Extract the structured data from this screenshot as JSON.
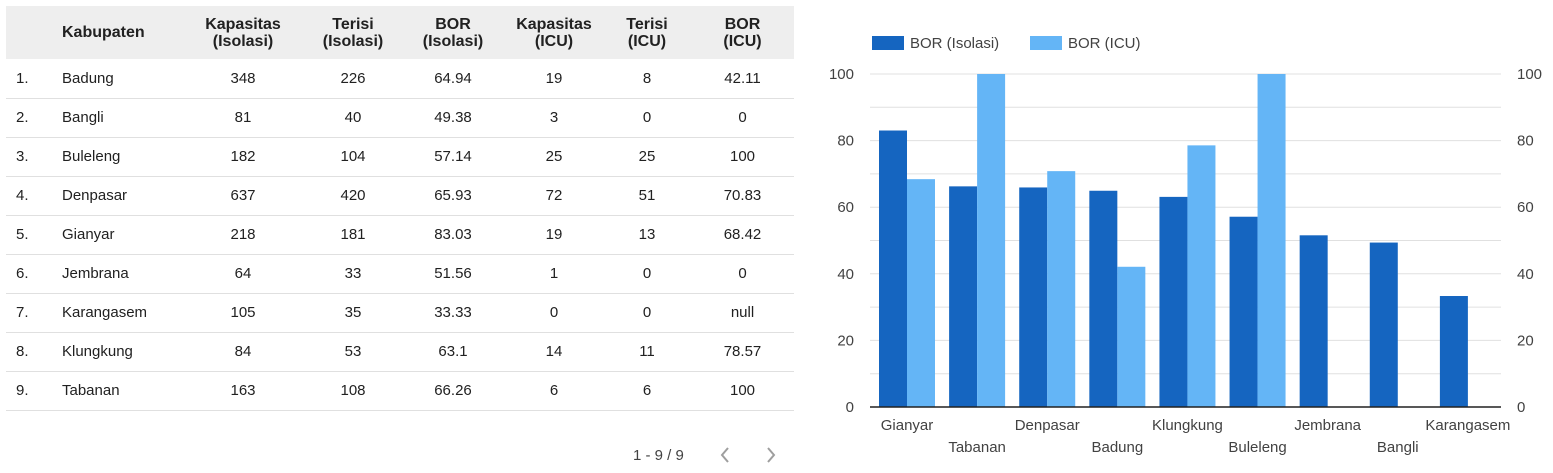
{
  "table": {
    "headers": [
      {
        "line1": "",
        "line2": ""
      },
      {
        "line1": "Kabupaten",
        "line2": ""
      },
      {
        "line1": "Kapasitas",
        "line2": "(Isolasi)"
      },
      {
        "line1": "Terisi",
        "line2": "(Isolasi)"
      },
      {
        "line1": "BOR",
        "line2": "(Isolasi)"
      },
      {
        "line1": "Kapasitas",
        "line2": "(ICU)"
      },
      {
        "line1": "Terisi",
        "line2": "(ICU)"
      },
      {
        "line1": "BOR",
        "line2": "(ICU)"
      }
    ],
    "rows": [
      {
        "no": "1.",
        "kabupaten": "Badung",
        "kap_iso": "348",
        "ter_iso": "226",
        "bor_iso": "64.94",
        "kap_icu": "19",
        "ter_icu": "8",
        "bor_icu": "42.11"
      },
      {
        "no": "2.",
        "kabupaten": "Bangli",
        "kap_iso": "81",
        "ter_iso": "40",
        "bor_iso": "49.38",
        "kap_icu": "3",
        "ter_icu": "0",
        "bor_icu": "0"
      },
      {
        "no": "3.",
        "kabupaten": "Buleleng",
        "kap_iso": "182",
        "ter_iso": "104",
        "bor_iso": "57.14",
        "kap_icu": "25",
        "ter_icu": "25",
        "bor_icu": "100"
      },
      {
        "no": "4.",
        "kabupaten": "Denpasar",
        "kap_iso": "637",
        "ter_iso": "420",
        "bor_iso": "65.93",
        "kap_icu": "72",
        "ter_icu": "51",
        "bor_icu": "70.83"
      },
      {
        "no": "5.",
        "kabupaten": "Gianyar",
        "kap_iso": "218",
        "ter_iso": "181",
        "bor_iso": "83.03",
        "kap_icu": "19",
        "ter_icu": "13",
        "bor_icu": "68.42"
      },
      {
        "no": "6.",
        "kabupaten": "Jembrana",
        "kap_iso": "64",
        "ter_iso": "33",
        "bor_iso": "51.56",
        "kap_icu": "1",
        "ter_icu": "0",
        "bor_icu": "0"
      },
      {
        "no": "7.",
        "kabupaten": "Karangasem",
        "kap_iso": "105",
        "ter_iso": "35",
        "bor_iso": "33.33",
        "kap_icu": "0",
        "ter_icu": "0",
        "bor_icu": "null"
      },
      {
        "no": "8.",
        "kabupaten": "Klungkung",
        "kap_iso": "84",
        "ter_iso": "53",
        "bor_iso": "63.1",
        "kap_icu": "14",
        "ter_icu": "11",
        "bor_icu": "78.57"
      },
      {
        "no": "9.",
        "kabupaten": "Tabanan",
        "kap_iso": "163",
        "ter_iso": "108",
        "bor_iso": "66.26",
        "kap_icu": "6",
        "ter_icu": "6",
        "bor_icu": "100"
      }
    ]
  },
  "pagination": {
    "label": "1 - 9 / 9",
    "prev_icon": "chevron-left-icon",
    "next_icon": "chevron-right-icon"
  },
  "chart_data": {
    "type": "bar",
    "title": "",
    "xlabel": "",
    "ylabel": "",
    "categories": [
      "Gianyar",
      "Tabanan",
      "Denpasar",
      "Badung",
      "Klungkung",
      "Buleleng",
      "Jembrana",
      "Bangli",
      "Karangasem"
    ],
    "series": [
      {
        "name": "BOR (Isolasi)",
        "color": "#1565c0",
        "values": [
          83.03,
          66.26,
          65.93,
          64.94,
          63.1,
          57.14,
          51.56,
          49.38,
          33.33
        ]
      },
      {
        "name": "BOR (ICU)",
        "color": "#64b5f6",
        "values": [
          68.42,
          100,
          70.83,
          42.11,
          78.57,
          100,
          0,
          0,
          null
        ]
      }
    ],
    "ylim": [
      0,
      100
    ],
    "yticks": [
      0,
      20,
      40,
      60,
      80,
      100
    ],
    "y_axes": "left-and-right",
    "grid": true,
    "legend": "top-left"
  }
}
